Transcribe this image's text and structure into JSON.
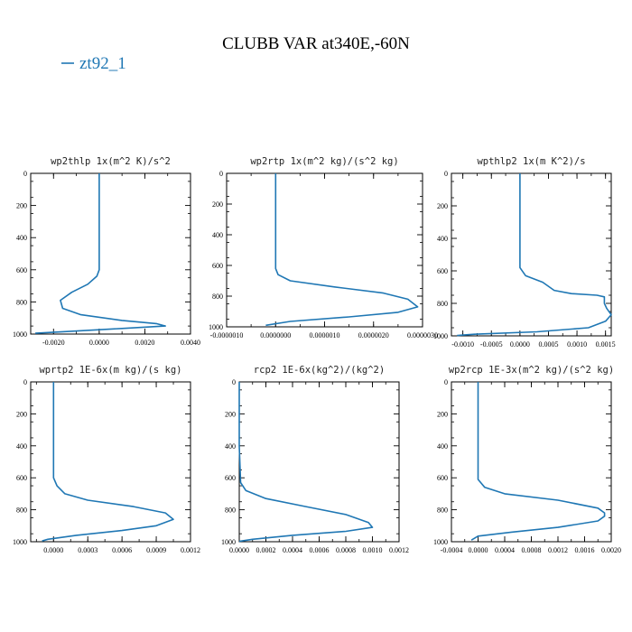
{
  "title": "CLUBB VAR at340E,-60N",
  "legend": {
    "label": "zt92_1",
    "color": "#1f77b4"
  },
  "chart_data": [
    {
      "type": "line",
      "title": "wp2thlp  1x(m^2 K)/s^2",
      "xlim": [
        -0.003,
        0.004
      ],
      "ylim": [
        1000,
        0
      ],
      "xticks": [
        "-0.0020",
        "0.0000",
        "0.0020",
        "0.0040"
      ],
      "xtick_values": [
        -0.002,
        0,
        0.002,
        0.004
      ],
      "yticks": [
        "0",
        "200",
        "400",
        "600",
        "800",
        "1000"
      ],
      "ytick_values": [
        0,
        200,
        400,
        600,
        800,
        1000
      ],
      "series": [
        {
          "name": "zt92_1",
          "x": [
            0,
            0,
            0,
            0,
            -0.0001,
            -0.0005,
            -0.0012,
            -0.0017,
            -0.0016,
            -0.0008,
            0.001,
            0.0025,
            0.0029,
            0.001,
            -0.0015,
            -0.0028
          ],
          "y": [
            0,
            200,
            400,
            600,
            640,
            690,
            740,
            790,
            840,
            880,
            915,
            935,
            950,
            965,
            985,
            995
          ]
        }
      ]
    },
    {
      "type": "line",
      "title": "wp2rtp  1x(m^2 kg)/(s^2 kg)",
      "xlim": [
        -1e-06,
        3e-06
      ],
      "ylim": [
        1000,
        0
      ],
      "xticks": [
        "-0.0000010",
        "0.0000000",
        "0.0000010",
        "0.0000020",
        "0.0000030"
      ],
      "xtick_values": [
        -1e-06,
        0,
        1e-06,
        2e-06,
        3e-06
      ],
      "yticks": [
        "0",
        "200",
        "400",
        "600",
        "800",
        "1000"
      ],
      "ytick_values": [
        0,
        200,
        400,
        600,
        800,
        1000
      ],
      "series": [
        {
          "name": "zt92_1",
          "x": [
            0,
            0,
            0,
            0,
            5e-08,
            3e-07,
            1.2e-06,
            2.2e-06,
            2.7e-06,
            2.9e-06,
            2.5e-06,
            1.5e-06,
            3e-07,
            -2e-07
          ],
          "y": [
            0,
            200,
            400,
            620,
            660,
            700,
            740,
            780,
            820,
            870,
            905,
            935,
            965,
            990
          ]
        }
      ]
    },
    {
      "type": "line",
      "title": "wpthlp2  1x(m K^2)/s",
      "xlim": [
        -0.0012,
        0.0016
      ],
      "ylim": [
        1000,
        0
      ],
      "xticks": [
        "-0.0010",
        "-0.0005",
        "0.0000",
        "0.0005",
        "0.0010",
        "0.0015"
      ],
      "xtick_values": [
        -0.001,
        -0.0005,
        0,
        0.0005,
        0.001,
        0.0015
      ],
      "yticks": [
        "0",
        "200",
        "400",
        "600",
        "800",
        "1000"
      ],
      "ytick_values": [
        0,
        200,
        400,
        600,
        800,
        1000
      ],
      "series": [
        {
          "name": "zt92_1",
          "x": [
            0,
            0,
            0,
            0,
            0.0001,
            0.0004,
            0.0006,
            0.0009,
            0.00135,
            0.00148,
            0.00148,
            0.00152,
            0.0016,
            0.0015,
            0.0012,
            0.0003,
            -0.0008,
            -0.0011
          ],
          "y": [
            0,
            200,
            400,
            580,
            630,
            670,
            720,
            740,
            750,
            760,
            800,
            830,
            870,
            910,
            950,
            975,
            990,
            998
          ]
        }
      ]
    },
    {
      "type": "line",
      "title": "wprtp2  1E-6x(m kg)/(s kg)",
      "xlim": [
        -0.0002,
        0.0012
      ],
      "ylim": [
        1000,
        0
      ],
      "xticks": [
        "0.0000",
        "0.0003",
        "0.0006",
        "0.0009",
        "0.0012"
      ],
      "xtick_values": [
        0,
        0.0003,
        0.0006,
        0.0009,
        0.0012
      ],
      "yticks": [
        "0",
        "200",
        "400",
        "600",
        "800",
        "1000"
      ],
      "ytick_values": [
        0,
        200,
        400,
        600,
        800,
        1000
      ],
      "series": [
        {
          "name": "zt92_1",
          "x": [
            0,
            0,
            0,
            0,
            3e-05,
            0.0001,
            0.0003,
            0.0007,
            0.00098,
            0.00105,
            0.0009,
            0.0006,
            0.0002,
            -5e-05,
            -0.0001
          ],
          "y": [
            0,
            200,
            400,
            600,
            650,
            700,
            740,
            780,
            820,
            860,
            900,
            930,
            960,
            985,
            995
          ]
        }
      ]
    },
    {
      "type": "line",
      "title": "rcp2  1E-6x(kg^2)/(kg^2)",
      "xlim": [
        0,
        0.0012
      ],
      "ylim": [
        1000,
        0
      ],
      "xticks": [
        "0.0000",
        "0.0002",
        "0.0004",
        "0.0006",
        "0.0008",
        "0.0010",
        "0.0012"
      ],
      "xtick_values": [
        0,
        0.0002,
        0.0004,
        0.0006,
        0.0008,
        0.001,
        0.0012
      ],
      "yticks": [
        "0",
        "200",
        "400",
        "600",
        "800",
        "1000"
      ],
      "ytick_values": [
        0,
        200,
        400,
        600,
        800,
        1000
      ],
      "series": [
        {
          "name": "zt92_1",
          "x": [
            0,
            0,
            0,
            1e-05,
            5e-05,
            0.0002,
            0.0005,
            0.0008,
            0.00097,
            0.001,
            0.0008,
            0.0004,
            0.0001,
            0
          ],
          "y": [
            0,
            200,
            400,
            630,
            680,
            730,
            780,
            830,
            880,
            910,
            935,
            960,
            985,
            998
          ]
        }
      ]
    },
    {
      "type": "line",
      "title": "wp2rcp  1E-3x(m^2 kg)/(s^2 kg)",
      "xlim": [
        -0.0004,
        0.002
      ],
      "ylim": [
        1000,
        0
      ],
      "xticks": [
        "-0.0004",
        "0.0000",
        "0.0004",
        "0.0008",
        "0.0012",
        "0.0016",
        "0.0020"
      ],
      "xtick_values": [
        -0.0004,
        0,
        0.0004,
        0.0008,
        0.0012,
        0.0016,
        0.002
      ],
      "yticks": [
        "0",
        "200",
        "400",
        "600",
        "800",
        "1000"
      ],
      "ytick_values": [
        0,
        200,
        400,
        600,
        800,
        1000
      ],
      "series": [
        {
          "name": "zt92_1",
          "x": [
            0,
            0,
            0,
            0,
            0.0001,
            0.0004,
            0.0012,
            0.0018,
            0.0019,
            0.0019,
            0.0018,
            0.0012,
            0.0005,
            0,
            -0.0001
          ],
          "y": [
            0,
            200,
            400,
            610,
            660,
            700,
            740,
            790,
            820,
            840,
            870,
            910,
            940,
            965,
            990
          ]
        }
      ]
    }
  ]
}
